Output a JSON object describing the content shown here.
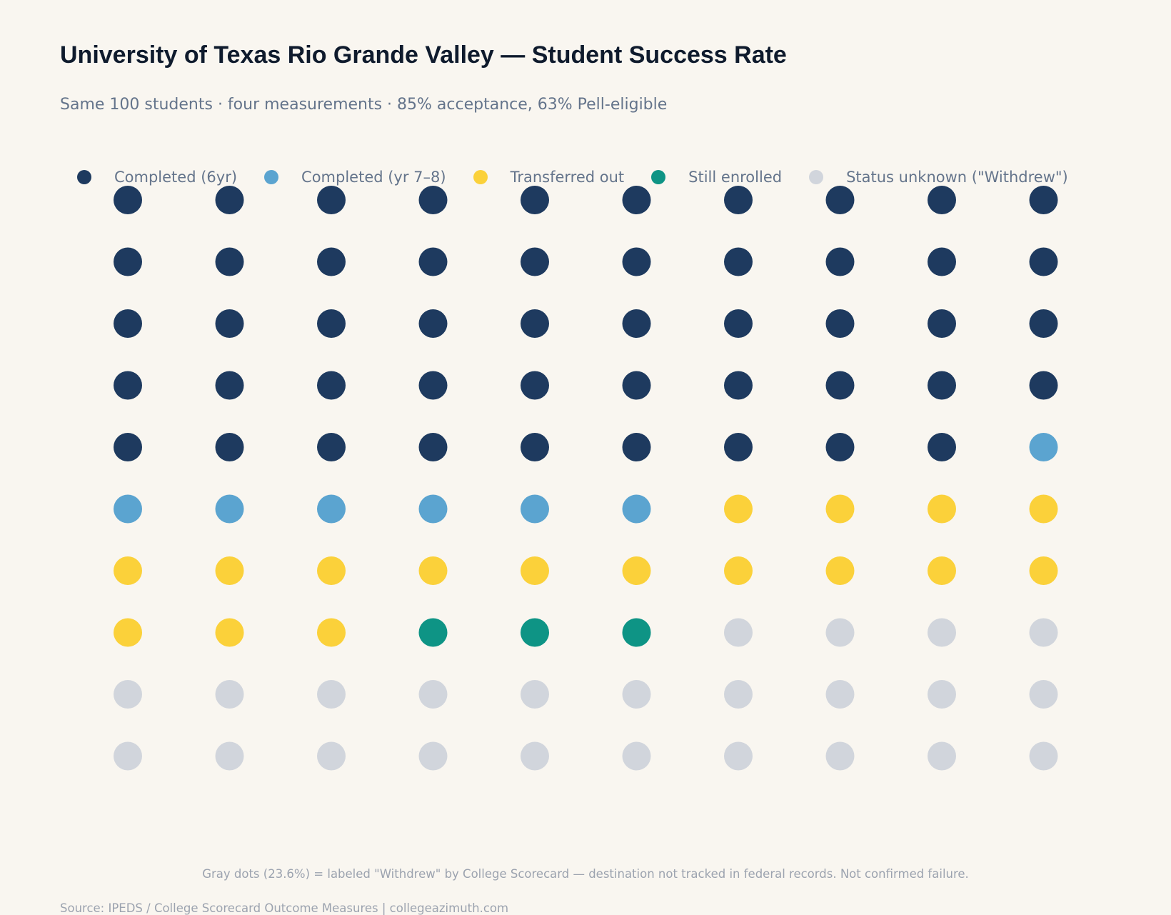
{
  "title": "University of Texas Rio Grande Valley — Student Success Rate",
  "subtitle": "Same 100 students · four measurements · 85% acceptance, 63% Pell-eligible",
  "chart_data": {
    "type": "waffle",
    "grid": {
      "rows": 10,
      "columns": 10
    },
    "legend_position": "top",
    "categories": [
      {
        "name": "Completed (6yr)",
        "count": 49,
        "color": "#1e3a5f"
      },
      {
        "name": "Completed (yr 7–8)",
        "count": 7,
        "color": "#5ba4d0"
      },
      {
        "name": "Transferred out",
        "count": 17,
        "color": "#fbd13a"
      },
      {
        "name": "Still enrolled",
        "count": 3,
        "color": "#0e9485"
      },
      {
        "name": "Status unknown (\"Withdrew\")",
        "count": 24,
        "color": "#d1d5dc"
      }
    ]
  },
  "note": "Gray dots (23.6%) = labeled \"Withdrew\" by College Scorecard — destination not tracked in federal records. Not confirmed failure.",
  "source": "Source: IPEDS / College Scorecard Outcome Measures | collegeazimuth.com"
}
